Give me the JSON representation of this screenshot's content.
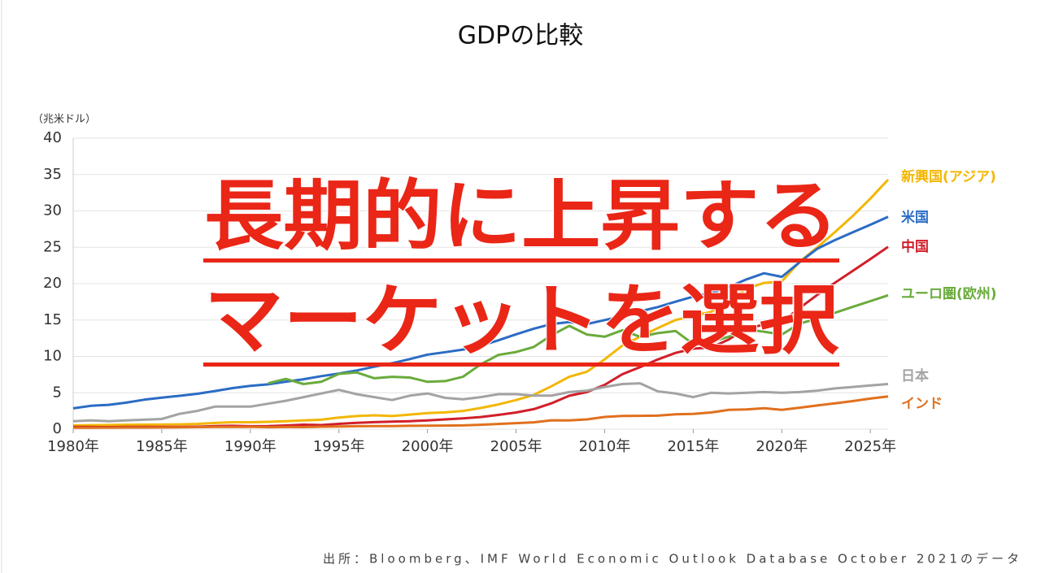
{
  "chart_data": {
    "type": "line",
    "title": "GDPの比較",
    "y_label": "（兆米ドル）",
    "x": [
      1980,
      1981,
      1982,
      1983,
      1984,
      1985,
      1986,
      1987,
      1988,
      1989,
      1990,
      1991,
      1992,
      1993,
      1994,
      1995,
      1996,
      1997,
      1998,
      1999,
      2000,
      2001,
      2002,
      2003,
      2004,
      2005,
      2006,
      2007,
      2008,
      2009,
      2010,
      2011,
      2012,
      2013,
      2014,
      2015,
      2016,
      2017,
      2018,
      2019,
      2020,
      2021,
      2022,
      2023,
      2024,
      2025,
      2026
    ],
    "xlim": [
      1980,
      2026
    ],
    "xticks": [
      {
        "value": 1980,
        "label": "1980年"
      },
      {
        "value": 1985,
        "label": "1985年"
      },
      {
        "value": 1990,
        "label": "1990年"
      },
      {
        "value": 1995,
        "label": "1995年"
      },
      {
        "value": 2000,
        "label": "2000年"
      },
      {
        "value": 2005,
        "label": "2005年"
      },
      {
        "value": 2010,
        "label": "2010年"
      },
      {
        "value": 2015,
        "label": "2015年"
      },
      {
        "value": 2020,
        "label": "2020年"
      },
      {
        "value": 2025,
        "label": "2025年"
      }
    ],
    "ylim": [
      0,
      40
    ],
    "yticks": [
      0,
      5,
      10,
      15,
      20,
      25,
      30,
      35,
      40
    ],
    "grid": true,
    "series": [
      {
        "name": "新興国(アジア)",
        "color": "#f2b705",
        "values": [
          0.5,
          0.55,
          0.57,
          0.6,
          0.62,
          0.63,
          0.66,
          0.72,
          0.85,
          0.95,
          0.95,
          1.0,
          1.1,
          1.2,
          1.3,
          1.6,
          1.8,
          1.9,
          1.8,
          2.0,
          2.2,
          2.3,
          2.5,
          2.9,
          3.4,
          4.0,
          4.7,
          5.9,
          7.2,
          7.9,
          9.6,
          11.5,
          12.7,
          13.9,
          15.0,
          15.6,
          16.1,
          17.6,
          19.3,
          20.1,
          20.3,
          23.0,
          25.0,
          27.1,
          29.3,
          31.7,
          34.3
        ]
      },
      {
        "name": "米国",
        "color": "#2b6cc4",
        "values": [
          2.86,
          3.21,
          3.34,
          3.64,
          4.04,
          4.34,
          4.58,
          4.86,
          5.24,
          5.64,
          5.96,
          6.16,
          6.52,
          6.86,
          7.29,
          7.64,
          8.07,
          8.58,
          9.06,
          9.63,
          10.25,
          10.58,
          10.94,
          11.46,
          12.21,
          13.04,
          13.81,
          14.45,
          14.71,
          14.45,
          14.99,
          15.54,
          16.2,
          16.78,
          17.52,
          18.22,
          18.71,
          19.52,
          20.58,
          21.43,
          20.94,
          22.94,
          24.8,
          25.99,
          27.05,
          28.1,
          29.2
        ]
      },
      {
        "name": "中国",
        "color": "#d11f2a",
        "values": [
          0.3,
          0.29,
          0.28,
          0.31,
          0.31,
          0.31,
          0.3,
          0.33,
          0.41,
          0.46,
          0.4,
          0.42,
          0.5,
          0.62,
          0.56,
          0.73,
          0.86,
          0.96,
          1.03,
          1.09,
          1.21,
          1.34,
          1.47,
          1.66,
          1.96,
          2.29,
          2.75,
          3.55,
          4.59,
          5.1,
          6.09,
          7.55,
          8.53,
          9.57,
          10.48,
          11.06,
          11.23,
          12.31,
          13.89,
          14.34,
          14.72,
          16.64,
          18.46,
          20.13,
          21.74,
          23.37,
          25.06
        ]
      },
      {
        "name": "ユーロ圏(欧州)",
        "color": "#6aab3c",
        "values": [
          null,
          null,
          null,
          null,
          null,
          null,
          null,
          null,
          null,
          null,
          null,
          6.3,
          6.9,
          6.2,
          6.5,
          7.6,
          7.8,
          7.0,
          7.2,
          7.1,
          6.5,
          6.6,
          7.2,
          8.9,
          10.2,
          10.6,
          11.3,
          12.9,
          14.2,
          13.0,
          12.7,
          13.6,
          12.7,
          13.2,
          13.5,
          11.7,
          12.0,
          12.7,
          13.7,
          13.4,
          13.0,
          14.5,
          15.2,
          16.0,
          16.8,
          17.6,
          18.4
        ]
      },
      {
        "name": "日本",
        "color": "#a3a3a3",
        "values": [
          1.1,
          1.2,
          1.1,
          1.2,
          1.3,
          1.4,
          2.1,
          2.5,
          3.1,
          3.1,
          3.1,
          3.5,
          3.9,
          4.4,
          4.9,
          5.4,
          4.8,
          4.4,
          4.0,
          4.6,
          4.9,
          4.3,
          4.1,
          4.4,
          4.8,
          4.8,
          4.6,
          4.6,
          5.1,
          5.3,
          5.8,
          6.2,
          6.3,
          5.2,
          4.9,
          4.4,
          5.0,
          4.9,
          5.0,
          5.1,
          5.0,
          5.1,
          5.3,
          5.6,
          5.8,
          6.0,
          6.2
        ]
      },
      {
        "name": "インド",
        "color": "#e0701e",
        "values": [
          0.19,
          0.2,
          0.21,
          0.22,
          0.22,
          0.24,
          0.26,
          0.28,
          0.3,
          0.3,
          0.32,
          0.27,
          0.29,
          0.28,
          0.33,
          0.37,
          0.4,
          0.42,
          0.43,
          0.46,
          0.47,
          0.49,
          0.51,
          0.6,
          0.71,
          0.83,
          0.94,
          1.22,
          1.2,
          1.34,
          1.68,
          1.82,
          1.83,
          1.86,
          2.04,
          2.1,
          2.29,
          2.65,
          2.7,
          2.87,
          2.66,
          2.95,
          3.25,
          3.55,
          3.85,
          4.2,
          4.5
        ]
      }
    ]
  },
  "slide": {
    "overlay": [
      "長期的に上昇する",
      "マーケットを選択"
    ],
    "source": "出所：Bloomberg、IMF World Economic Outlook Database October 2021のデータ"
  }
}
